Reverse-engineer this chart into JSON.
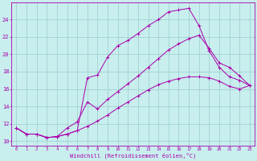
{
  "xlabel": "Windchill (Refroidissement éolien,°C)",
  "bg_color": "#c8eeee",
  "line_color": "#aa00aa",
  "grid_color": "#99cccc",
  "xlim": [
    -0.5,
    23.5
  ],
  "ylim": [
    9.5,
    26.0
  ],
  "xticks": [
    0,
    1,
    2,
    3,
    4,
    5,
    6,
    7,
    8,
    9,
    10,
    11,
    12,
    13,
    14,
    15,
    16,
    17,
    18,
    19,
    20,
    21,
    22,
    23
  ],
  "yticks": [
    10,
    12,
    14,
    16,
    18,
    20,
    22,
    24
  ],
  "line1_x": [
    0,
    1,
    2,
    3,
    4,
    5,
    6,
    7,
    8,
    9,
    10,
    11,
    12,
    13,
    14,
    15,
    16,
    17,
    18,
    19,
    20,
    21,
    22,
    23
  ],
  "line1_y": [
    11.5,
    10.8,
    10.8,
    10.4,
    10.5,
    10.8,
    11.2,
    11.7,
    12.3,
    13.0,
    13.8,
    14.5,
    15.2,
    15.9,
    16.5,
    16.9,
    17.2,
    17.4,
    17.4,
    17.3,
    16.9,
    16.3,
    16.0,
    16.4
  ],
  "line2_x": [
    0,
    1,
    2,
    3,
    4,
    5,
    6,
    7,
    8,
    9,
    10,
    11,
    12,
    13,
    14,
    15,
    16,
    17,
    18,
    19,
    20,
    21,
    22,
    23
  ],
  "line2_y": [
    11.5,
    10.8,
    10.8,
    10.4,
    10.5,
    10.8,
    11.2,
    17.3,
    17.6,
    19.7,
    21.0,
    21.6,
    22.4,
    23.3,
    24.0,
    24.9,
    25.1,
    25.3,
    23.3,
    20.4,
    18.5,
    17.4,
    17.0,
    16.4
  ],
  "line3_x": [
    0,
    1,
    2,
    3,
    4,
    5,
    6,
    7,
    8,
    9,
    10,
    11,
    12,
    13,
    14,
    15,
    16,
    17,
    18,
    19,
    20,
    21,
    22,
    23
  ],
  "line3_y": [
    11.5,
    10.8,
    10.8,
    10.4,
    10.5,
    11.5,
    12.2,
    14.5,
    13.7,
    14.8,
    15.7,
    16.6,
    17.5,
    18.5,
    19.5,
    20.5,
    21.2,
    21.8,
    22.2,
    20.7,
    19.0,
    18.5,
    17.5,
    16.4
  ]
}
